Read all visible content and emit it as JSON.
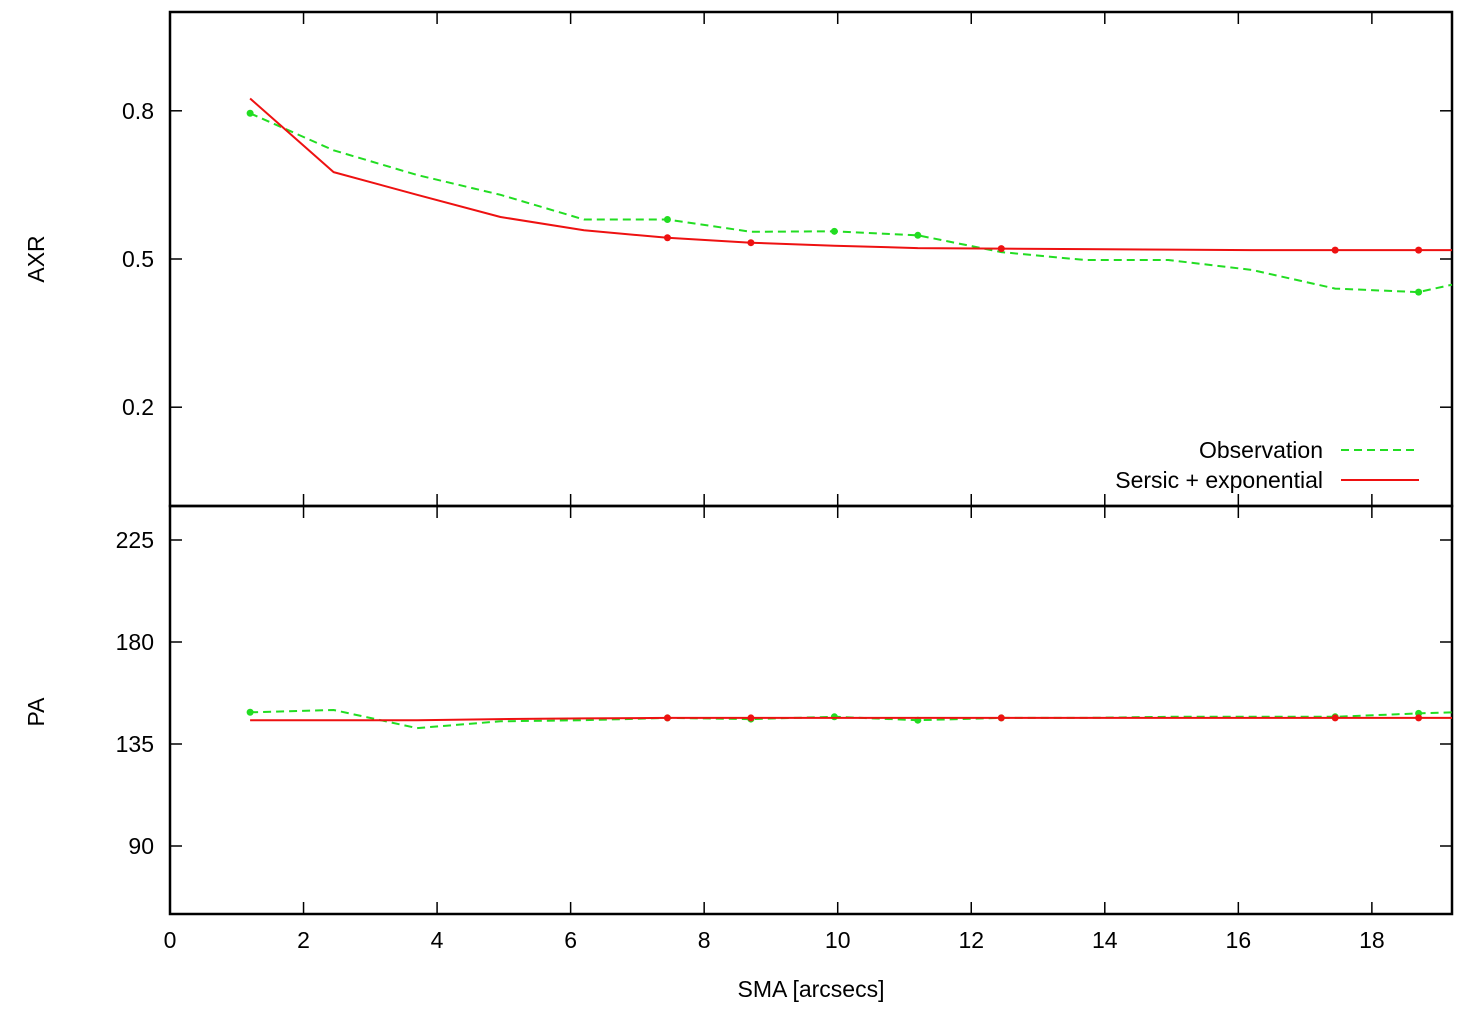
{
  "colors": {
    "observation": "#22dd22",
    "model": "#ee1111",
    "axis": "#000000"
  },
  "legend": {
    "placement": "bottom-right of top panel",
    "observation_label": "Observation",
    "model_label": "Sersic + exponential"
  },
  "chart_data": [
    {
      "type": "line",
      "panel": "top",
      "title": "",
      "xlabel": "",
      "ylabel": "AXR",
      "xlim": [
        0,
        19.2
      ],
      "ylim": [
        0.0,
        1.0
      ],
      "yticks": [
        0.2,
        0.5,
        0.8
      ],
      "ytick_labels": [
        "0.2",
        "0.5",
        "0.8"
      ],
      "grid": false,
      "series": [
        {
          "name": "Observation",
          "style": "dashed",
          "x": [
            1.2,
            2.45,
            3.7,
            4.95,
            6.2,
            7.45,
            8.7,
            9.95,
            11.2,
            12.45,
            13.7,
            14.95,
            16.2,
            17.45,
            18.7,
            19.2
          ],
          "y": [
            0.795,
            0.72,
            0.67,
            0.63,
            0.58,
            0.58,
            0.555,
            0.556,
            0.548,
            0.514,
            0.498,
            0.498,
            0.478,
            0.44,
            0.433,
            0.448
          ],
          "markers_at": [
            1.2,
            7.45,
            9.95,
            11.2,
            18.7
          ]
        },
        {
          "name": "Sersic + exponential",
          "style": "solid",
          "x": [
            1.2,
            2.45,
            3.7,
            4.95,
            6.2,
            7.45,
            8.7,
            9.95,
            11.2,
            12.45,
            13.7,
            14.95,
            16.2,
            17.45,
            18.7,
            19.2
          ],
          "y": [
            0.825,
            0.676,
            0.63,
            0.585,
            0.558,
            0.543,
            0.533,
            0.527,
            0.522,
            0.521,
            0.52,
            0.519,
            0.518,
            0.518,
            0.518,
            0.518
          ],
          "markers_at": [
            7.45,
            8.7,
            12.45,
            17.45,
            18.7
          ]
        }
      ]
    },
    {
      "type": "line",
      "panel": "bottom",
      "title": "",
      "xlabel": "SMA [arcsecs]",
      "ylabel": "PA",
      "xlim": [
        0,
        19.2
      ],
      "ylim": [
        60,
        240
      ],
      "xticks": [
        0,
        2,
        4,
        6,
        8,
        10,
        12,
        14,
        16,
        18
      ],
      "xtick_labels": [
        "0",
        "2",
        "4",
        "6",
        "8",
        "10",
        "12",
        "14",
        "16",
        "18"
      ],
      "yticks": [
        90,
        135,
        180,
        225
      ],
      "ytick_labels": [
        "90",
        "135",
        "180",
        "225"
      ],
      "grid": false,
      "series": [
        {
          "name": "Observation",
          "style": "dashed",
          "x": [
            1.2,
            2.45,
            3.7,
            4.95,
            6.2,
            7.45,
            8.7,
            9.95,
            11.2,
            12.45,
            13.7,
            14.95,
            16.2,
            17.45,
            18.7,
            19.2
          ],
          "y": [
            149,
            150,
            142,
            145,
            145.5,
            146.5,
            146,
            147,
            145.5,
            146.5,
            146.5,
            147,
            147,
            147,
            148.5,
            149
          ],
          "markers_at": [
            1.2,
            7.45,
            8.7,
            9.95,
            11.2,
            12.45,
            17.45,
            18.7
          ]
        },
        {
          "name": "Sersic + exponential",
          "style": "solid",
          "x": [
            1.2,
            2.45,
            3.7,
            4.95,
            6.2,
            7.45,
            8.7,
            9.95,
            11.2,
            12.45,
            13.7,
            14.95,
            16.2,
            17.45,
            18.7,
            19.2
          ],
          "y": [
            145.5,
            145.5,
            145.5,
            146,
            146.3,
            146.5,
            146.5,
            146.5,
            146.5,
            146.5,
            146.5,
            146.5,
            146.5,
            146.5,
            146.5,
            146.5
          ],
          "markers_at": [
            7.45,
            8.7,
            12.45,
            17.45,
            18.7
          ]
        }
      ]
    }
  ]
}
